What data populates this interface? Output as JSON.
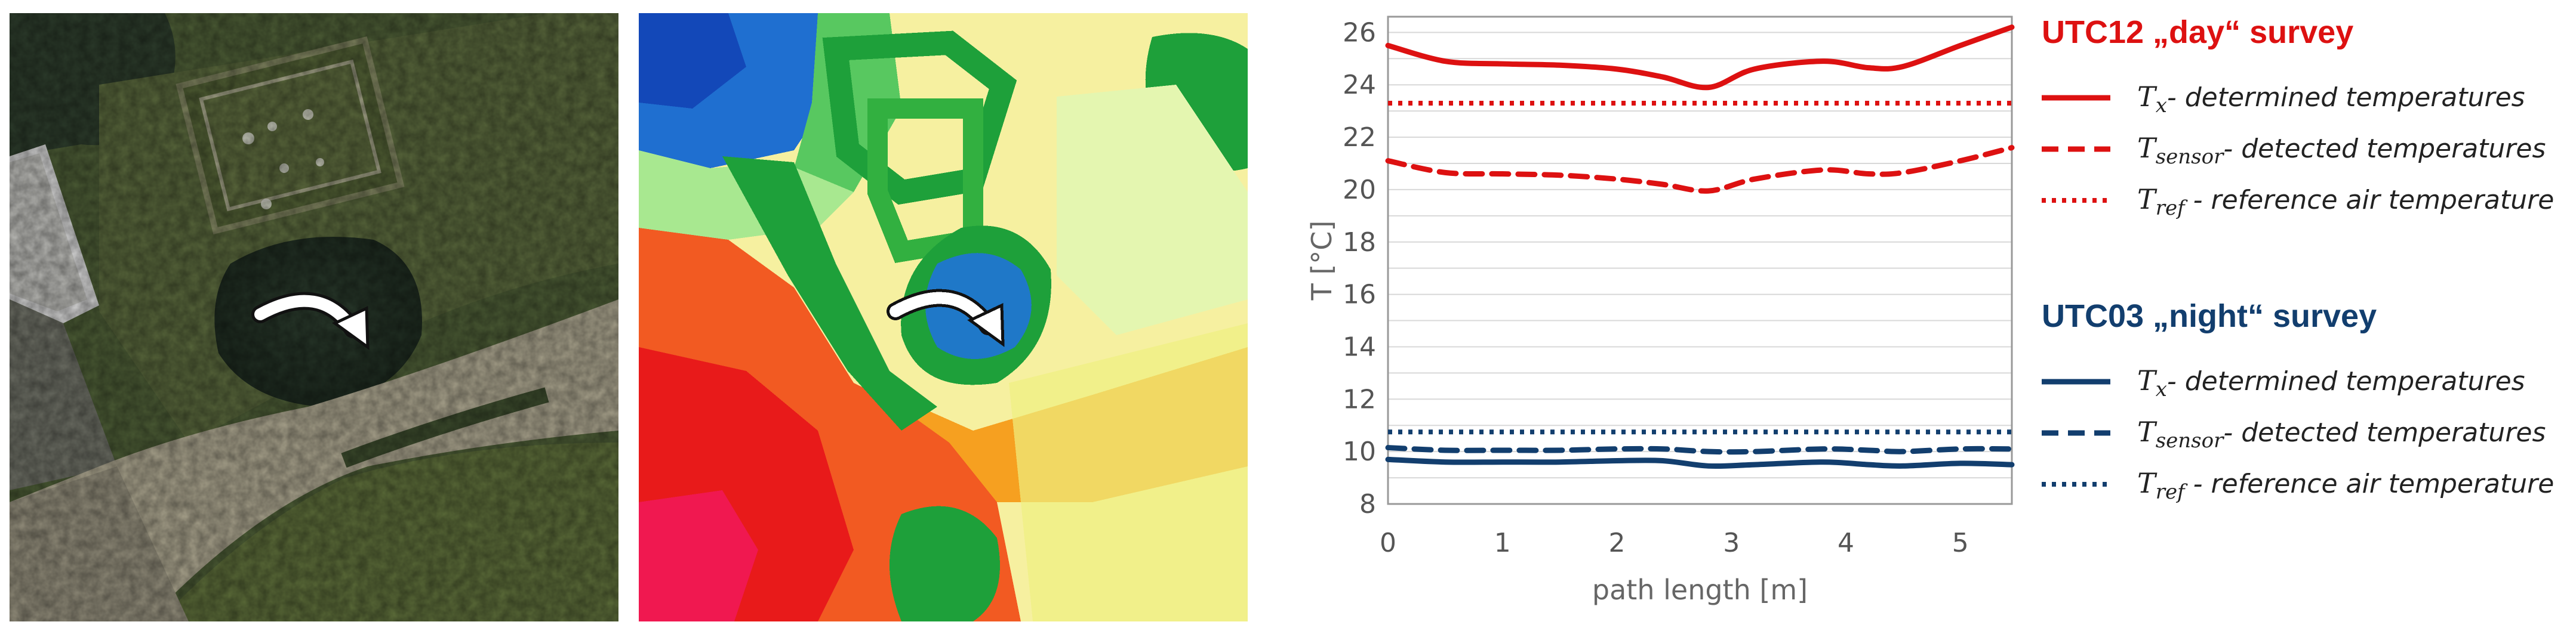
{
  "images": {
    "aerial_photo": {
      "description_name": "aerial-photo"
    },
    "thermal_map": {
      "description_name": "thermal-map"
    }
  },
  "colors": {
    "day": "#dd1111",
    "night": "#123e6e",
    "grid": "#d8d8d8",
    "axis": "#999999"
  },
  "chart_data": {
    "type": "line",
    "xlabel": "path length [m]",
    "ylabel": "T [°C]",
    "xlim": [
      0,
      5.45
    ],
    "ylim": [
      8,
      26.6
    ],
    "x_ticks": [
      0,
      1,
      2,
      3,
      4,
      5
    ],
    "y_ticks": [
      8,
      10,
      12,
      14,
      16,
      18,
      20,
      22,
      24,
      26
    ],
    "grid": "horizontal",
    "legend_placement": "right",
    "groups": [
      {
        "title": "UTC12 „day“ survey",
        "color": "#dd1111",
        "entries": [
          {
            "symbol": "T",
            "subscript": "x",
            "description": "- determined temperatures",
            "style": "solid"
          },
          {
            "symbol": "T",
            "subscript": "sensor",
            "description": "- detected temperatures",
            "style": "dashed"
          },
          {
            "symbol": "T",
            "subscript": "ref",
            "description": " - reference air temperature",
            "style": "dotted"
          }
        ]
      },
      {
        "title": "UTC03 „night“ survey",
        "color": "#123e6e",
        "entries": [
          {
            "symbol": "T",
            "subscript": "x",
            "description": "- determined temperatures",
            "style": "solid"
          },
          {
            "symbol": "T",
            "subscript": "sensor",
            "description": "- detected temperatures",
            "style": "dashed"
          },
          {
            "symbol": "T",
            "subscript": "ref",
            "description": " - reference air temperature",
            "style": "dotted"
          }
        ]
      }
    ],
    "series": [
      {
        "group": 0,
        "style": "solid",
        "color": "#dd1111",
        "x": [
          0,
          0.5,
          1,
          1.5,
          2,
          2.4,
          2.8,
          3.2,
          3.8,
          4.2,
          4.5,
          5,
          5.45
        ],
        "y": [
          25.5,
          24.9,
          24.8,
          24.75,
          24.6,
          24.3,
          23.9,
          24.6,
          24.9,
          24.65,
          24.7,
          25.5,
          26.2
        ]
      },
      {
        "group": 0,
        "style": "dashed",
        "color": "#dd1111",
        "x": [
          0,
          0.5,
          1,
          1.5,
          2,
          2.4,
          2.8,
          3.2,
          3.8,
          4.2,
          4.5,
          5,
          5.45
        ],
        "y": [
          21.1,
          20.65,
          20.6,
          20.55,
          20.4,
          20.2,
          19.95,
          20.4,
          20.75,
          20.6,
          20.65,
          21.1,
          21.6
        ]
      },
      {
        "group": 0,
        "style": "dotted",
        "color": "#dd1111",
        "x": [
          0,
          5.45
        ],
        "y": [
          23.3,
          23.3
        ]
      },
      {
        "group": 1,
        "style": "solid",
        "color": "#123e6e",
        "x": [
          0,
          0.5,
          1,
          1.5,
          2,
          2.4,
          2.8,
          3.2,
          3.8,
          4.2,
          4.5,
          5,
          5.45
        ],
        "y": [
          9.7,
          9.6,
          9.6,
          9.6,
          9.65,
          9.65,
          9.45,
          9.5,
          9.6,
          9.5,
          9.45,
          9.55,
          9.5
        ]
      },
      {
        "group": 1,
        "style": "dashed",
        "color": "#123e6e",
        "x": [
          0,
          0.5,
          1,
          1.5,
          2,
          2.4,
          2.8,
          3.2,
          3.8,
          4.2,
          4.5,
          5,
          5.45
        ],
        "y": [
          10.15,
          10.05,
          10.05,
          10.05,
          10.1,
          10.1,
          10.0,
          10.0,
          10.1,
          10.05,
          10.0,
          10.1,
          10.1
        ]
      },
      {
        "group": 1,
        "style": "dotted",
        "color": "#123e6e",
        "x": [
          0,
          5.45
        ],
        "y": [
          10.75,
          10.75
        ]
      }
    ]
  }
}
